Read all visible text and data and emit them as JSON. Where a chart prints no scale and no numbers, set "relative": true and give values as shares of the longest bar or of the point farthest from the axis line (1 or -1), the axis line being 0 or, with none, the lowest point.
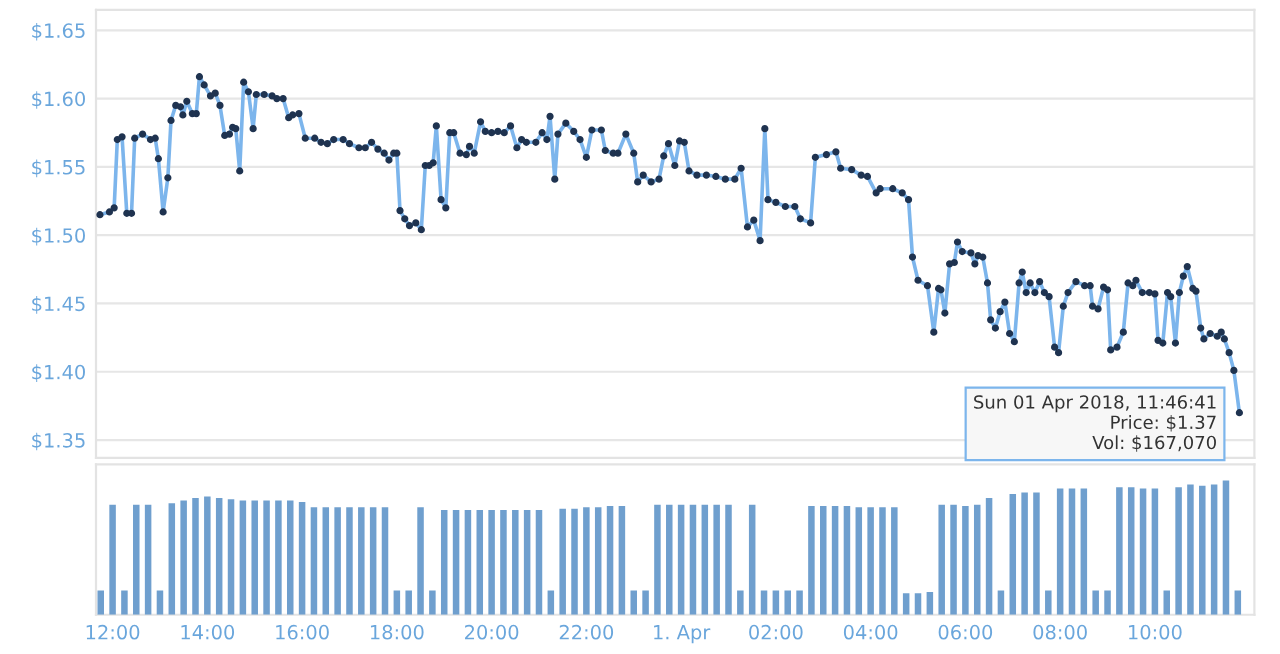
{
  "chart_data": [
    {
      "type": "line",
      "xlim": [
        "2018-03-31T11:39",
        "2018-04-01T12:06"
      ],
      "ylim": [
        1.337,
        1.665
      ],
      "yticks": [
        {
          "value": 1.35,
          "label": "$1.35"
        },
        {
          "value": 1.4,
          "label": "$1.40"
        },
        {
          "value": 1.45,
          "label": "$1.45"
        },
        {
          "value": 1.5,
          "label": "$1.50"
        },
        {
          "value": 1.55,
          "label": "$1.55"
        },
        {
          "value": 1.6,
          "label": "$1.60"
        },
        {
          "value": 1.65,
          "label": "$1.65"
        }
      ],
      "tick_labels": "y",
      "grid": "y",
      "marker": "circle",
      "line_style": "solid",
      "annotations": [
        {
          "text": "Sun 01 Apr 2018, 11:46:41\nPrice: $1.37\nVol: $167,070",
          "x": "2018-04-01T11:47",
          "y": 1.37
        }
      ],
      "series": [
        {
          "color": "#7cb5ec",
          "x": [
            "2018-03-31T11:44",
            "2018-03-31T11:56",
            "2018-03-31T12:02",
            "2018-03-31T12:06",
            "2018-03-31T12:12",
            "2018-03-31T12:18",
            "2018-03-31T12:24",
            "2018-03-31T12:28",
            "2018-03-31T12:38",
            "2018-03-31T12:48",
            "2018-03-31T12:54",
            "2018-03-31T12:58",
            "2018-03-31T13:04",
            "2018-03-31T13:10",
            "2018-03-31T13:14",
            "2018-03-31T13:20",
            "2018-03-31T13:26",
            "2018-03-31T13:29",
            "2018-03-31T13:34",
            "2018-03-31T13:41",
            "2018-03-31T13:46",
            "2018-03-31T13:50",
            "2018-03-31T13:56",
            "2018-03-31T14:04",
            "2018-03-31T14:10",
            "2018-03-31T14:16",
            "2018-03-31T14:22",
            "2018-03-31T14:28",
            "2018-03-31T14:32",
            "2018-03-31T14:36",
            "2018-03-31T14:41",
            "2018-03-31T14:46",
            "2018-03-31T14:52",
            "2018-03-31T14:58",
            "2018-03-31T15:02",
            "2018-03-31T15:12",
            "2018-03-31T15:22",
            "2018-03-31T15:28",
            "2018-03-31T15:36",
            "2018-03-31T15:43",
            "2018-03-31T15:48",
            "2018-03-31T15:56",
            "2018-03-31T16:04",
            "2018-03-31T16:16",
            "2018-03-31T16:24",
            "2018-03-31T16:32",
            "2018-03-31T16:40",
            "2018-03-31T16:52",
            "2018-03-31T17:00",
            "2018-03-31T17:12",
            "2018-03-31T17:20",
            "2018-03-31T17:28",
            "2018-03-31T17:36",
            "2018-03-31T17:44",
            "2018-03-31T17:50",
            "2018-03-31T17:56",
            "2018-03-31T18:00",
            "2018-03-31T18:04",
            "2018-03-31T18:10",
            "2018-03-31T18:16",
            "2018-03-31T18:24",
            "2018-03-31T18:31",
            "2018-03-31T18:36",
            "2018-03-31T18:41",
            "2018-03-31T18:46",
            "2018-03-31T18:50",
            "2018-03-31T18:56",
            "2018-03-31T19:02",
            "2018-03-31T19:07",
            "2018-03-31T19:12",
            "2018-03-31T19:20",
            "2018-03-31T19:28",
            "2018-03-31T19:32",
            "2018-03-31T19:38",
            "2018-03-31T19:46",
            "2018-03-31T19:52",
            "2018-03-31T20:00",
            "2018-03-31T20:08",
            "2018-03-31T20:16",
            "2018-03-31T20:24",
            "2018-03-31T20:32",
            "2018-03-31T20:38",
            "2018-03-31T20:44",
            "2018-03-31T20:56",
            "2018-03-31T21:04",
            "2018-03-31T21:10",
            "2018-03-31T21:14",
            "2018-03-31T21:20",
            "2018-03-31T21:24",
            "2018-03-31T21:34",
            "2018-03-31T21:44",
            "2018-03-31T21:52",
            "2018-03-31T22:00",
            "2018-03-31T22:07",
            "2018-03-31T22:19",
            "2018-03-31T22:24",
            "2018-03-31T22:34",
            "2018-03-31T22:40",
            "2018-03-31T22:50",
            "2018-03-31T23:00",
            "2018-03-31T23:05",
            "2018-03-31T23:12",
            "2018-03-31T23:22",
            "2018-03-31T23:32",
            "2018-03-31T23:38",
            "2018-03-31T23:44",
            "2018-03-31T23:52",
            "2018-03-31T23:58",
            "2018-04-01T00:04",
            "2018-04-01T00:10",
            "2018-04-01T00:20",
            "2018-04-01T00:32",
            "2018-04-01T00:44",
            "2018-04-01T00:56",
            "2018-04-01T01:08",
            "2018-04-01T01:16",
            "2018-04-01T01:24",
            "2018-04-01T01:32",
            "2018-04-01T01:40",
            "2018-04-01T01:46",
            "2018-04-01T01:50",
            "2018-04-01T02:00",
            "2018-04-01T02:12",
            "2018-04-01T02:24",
            "2018-04-01T02:31",
            "2018-04-01T02:44",
            "2018-04-01T02:50",
            "2018-04-01T03:04",
            "2018-04-01T03:16",
            "2018-04-01T03:22",
            "2018-04-01T03:36",
            "2018-04-01T03:48",
            "2018-04-01T03:56",
            "2018-04-01T04:07",
            "2018-04-01T04:12",
            "2018-04-01T04:28",
            "2018-04-01T04:40",
            "2018-04-01T04:48",
            "2018-04-01T04:53",
            "2018-04-01T05:00",
            "2018-04-01T05:12",
            "2018-04-01T05:20",
            "2018-04-01T05:26",
            "2018-04-01T05:29",
            "2018-04-01T05:34",
            "2018-04-01T05:40",
            "2018-04-01T05:46",
            "2018-04-01T05:50",
            "2018-04-01T05:56",
            "2018-04-01T06:07",
            "2018-04-01T06:12",
            "2018-04-01T06:16",
            "2018-04-01T06:22",
            "2018-04-01T06:28",
            "2018-04-01T06:32",
            "2018-04-01T06:38",
            "2018-04-01T06:44",
            "2018-04-01T06:50",
            "2018-04-01T06:56",
            "2018-04-01T07:02",
            "2018-04-01T07:08",
            "2018-04-01T07:12",
            "2018-04-01T07:17",
            "2018-04-01T07:22",
            "2018-04-01T07:28",
            "2018-04-01T07:34",
            "2018-04-01T07:40",
            "2018-04-01T07:46",
            "2018-04-01T07:53",
            "2018-04-01T07:58",
            "2018-04-01T08:04",
            "2018-04-01T08:10",
            "2018-04-01T08:20",
            "2018-04-01T08:31",
            "2018-04-01T08:38",
            "2018-04-01T08:41",
            "2018-04-01T08:48",
            "2018-04-01T08:55",
            "2018-04-01T09:00",
            "2018-04-01T09:04",
            "2018-04-01T09:12",
            "2018-04-01T09:20",
            "2018-04-01T09:26",
            "2018-04-01T09:32",
            "2018-04-01T09:36",
            "2018-04-01T09:44",
            "2018-04-01T09:53",
            "2018-04-01T10:00",
            "2018-04-01T10:04",
            "2018-04-01T10:10",
            "2018-04-01T10:16",
            "2018-04-01T10:20",
            "2018-04-01T10:26",
            "2018-04-01T10:31",
            "2018-04-01T10:36",
            "2018-04-01T10:41",
            "2018-04-01T10:48",
            "2018-04-01T10:52",
            "2018-04-01T10:58",
            "2018-04-01T11:02",
            "2018-04-01T11:10",
            "2018-04-01T11:19",
            "2018-04-01T11:24",
            "2018-04-01T11:28",
            "2018-04-01T11:34",
            "2018-04-01T11:40",
            "2018-04-01T11:47"
          ],
          "values": [
            1.515,
            1.517,
            1.52,
            1.57,
            1.572,
            1.516,
            1.516,
            1.571,
            1.574,
            1.57,
            1.571,
            1.556,
            1.517,
            1.542,
            1.584,
            1.595,
            1.594,
            1.588,
            1.598,
            1.589,
            1.589,
            1.616,
            1.61,
            1.602,
            1.604,
            1.595,
            1.573,
            1.574,
            1.579,
            1.578,
            1.547,
            1.612,
            1.605,
            1.578,
            1.603,
            1.603,
            1.602,
            1.6,
            1.6,
            1.586,
            1.588,
            1.589,
            1.571,
            1.571,
            1.568,
            1.567,
            1.57,
            1.57,
            1.567,
            1.564,
            1.564,
            1.568,
            1.563,
            1.56,
            1.555,
            1.56,
            1.56,
            1.518,
            1.512,
            1.507,
            1.509,
            1.504,
            1.551,
            1.551,
            1.553,
            1.58,
            1.526,
            1.52,
            1.575,
            1.575,
            1.56,
            1.559,
            1.565,
            1.56,
            1.583,
            1.576,
            1.575,
            1.576,
            1.575,
            1.58,
            1.564,
            1.57,
            1.568,
            1.568,
            1.575,
            1.57,
            1.587,
            1.541,
            1.574,
            1.582,
            1.576,
            1.57,
            1.557,
            1.577,
            1.577,
            1.562,
            1.56,
            1.56,
            1.574,
            1.56,
            1.539,
            1.544,
            1.539,
            1.541,
            1.558,
            1.567,
            1.551,
            1.569,
            1.568,
            1.547,
            1.544,
            1.544,
            1.543,
            1.541,
            1.541,
            1.549,
            1.506,
            1.511,
            1.496,
            1.578,
            1.526,
            1.524,
            1.521,
            1.521,
            1.512,
            1.509,
            1.557,
            1.559,
            1.561,
            1.549,
            1.548,
            1.544,
            1.543,
            1.531,
            1.534,
            1.534,
            1.531,
            1.526,
            1.484,
            1.467,
            1.463,
            1.429,
            1.461,
            1.46,
            1.443,
            1.479,
            1.48,
            1.495,
            1.488,
            1.487,
            1.479,
            1.485,
            1.484,
            1.465,
            1.438,
            1.432,
            1.444,
            1.451,
            1.428,
            1.422,
            1.465,
            1.473,
            1.458,
            1.465,
            1.458,
            1.466,
            1.458,
            1.455,
            1.418,
            1.414,
            1.448,
            1.458,
            1.466,
            1.463,
            1.463,
            1.448,
            1.446,
            1.462,
            1.46,
            1.416,
            1.418,
            1.429,
            1.465,
            1.463,
            1.467,
            1.458,
            1.458,
            1.457,
            1.423,
            1.421,
            1.458,
            1.455,
            1.421,
            1.458,
            1.47,
            1.477,
            1.461,
            1.459,
            1.432,
            1.424,
            1.428,
            1.426,
            1.429,
            1.424,
            1.414,
            1.401,
            1.37
          ]
        }
      ]
    },
    {
      "type": "bar",
      "relative": true,
      "xlim": [
        "2018-03-31T11:39",
        "2018-04-01T12:06"
      ],
      "tick_labels": "x",
      "xticks": [
        {
          "value": "2018-03-31T12:00",
          "label": "12:00"
        },
        {
          "value": "2018-03-31T14:00",
          "label": "14:00"
        },
        {
          "value": "2018-03-31T16:00",
          "label": "16:00"
        },
        {
          "value": "2018-03-31T18:00",
          "label": "18:00"
        },
        {
          "value": "2018-03-31T20:00",
          "label": "20:00"
        },
        {
          "value": "2018-03-31T22:00",
          "label": "22:00"
        },
        {
          "value": "2018-04-01T00:00",
          "label": "1. Apr"
        },
        {
          "value": "2018-04-01T02:00",
          "label": "02:00"
        },
        {
          "value": "2018-04-01T04:00",
          "label": "04:00"
        },
        {
          "value": "2018-04-01T06:00",
          "label": "06:00"
        },
        {
          "value": "2018-04-01T08:00",
          "label": "08:00"
        },
        {
          "value": "2018-04-01T10:00",
          "label": "10:00"
        }
      ],
      "series": [
        {
          "color": "#6f9fce",
          "x": [
            "2018-03-31T11:45",
            "2018-03-31T12:00",
            "2018-03-31T12:15",
            "2018-03-31T12:30",
            "2018-03-31T12:45",
            "2018-03-31T13:00",
            "2018-03-31T13:15",
            "2018-03-31T13:30",
            "2018-03-31T13:45",
            "2018-03-31T14:00",
            "2018-03-31T14:15",
            "2018-03-31T14:30",
            "2018-03-31T14:45",
            "2018-03-31T15:00",
            "2018-03-31T15:15",
            "2018-03-31T15:30",
            "2018-03-31T15:45",
            "2018-03-31T16:00",
            "2018-03-31T16:15",
            "2018-03-31T16:30",
            "2018-03-31T16:45",
            "2018-03-31T17:00",
            "2018-03-31T17:15",
            "2018-03-31T17:30",
            "2018-03-31T17:45",
            "2018-03-31T18:00",
            "2018-03-31T18:15",
            "2018-03-31T18:30",
            "2018-03-31T18:45",
            "2018-03-31T19:00",
            "2018-03-31T19:15",
            "2018-03-31T19:30",
            "2018-03-31T19:45",
            "2018-03-31T20:00",
            "2018-03-31T20:15",
            "2018-03-31T20:30",
            "2018-03-31T20:45",
            "2018-03-31T21:00",
            "2018-03-31T21:15",
            "2018-03-31T21:30",
            "2018-03-31T21:45",
            "2018-03-31T22:00",
            "2018-03-31T22:15",
            "2018-03-31T22:30",
            "2018-03-31T22:45",
            "2018-03-31T23:00",
            "2018-03-31T23:15",
            "2018-03-31T23:30",
            "2018-03-31T23:45",
            "2018-04-01T00:00",
            "2018-04-01T00:15",
            "2018-04-01T00:30",
            "2018-04-01T00:45",
            "2018-04-01T01:00",
            "2018-04-01T01:15",
            "2018-04-01T01:30",
            "2018-04-01T01:45",
            "2018-04-01T02:00",
            "2018-04-01T02:15",
            "2018-04-01T02:30",
            "2018-04-01T02:45",
            "2018-04-01T03:00",
            "2018-04-01T03:15",
            "2018-04-01T03:30",
            "2018-04-01T03:45",
            "2018-04-01T04:00",
            "2018-04-01T04:15",
            "2018-04-01T04:30",
            "2018-04-01T04:45",
            "2018-04-01T05:00",
            "2018-04-01T05:15",
            "2018-04-01T05:30",
            "2018-04-01T05:45",
            "2018-04-01T06:00",
            "2018-04-01T06:15",
            "2018-04-01T06:30",
            "2018-04-01T06:45",
            "2018-04-01T07:00",
            "2018-04-01T07:15",
            "2018-04-01T07:30",
            "2018-04-01T07:45",
            "2018-04-01T08:00",
            "2018-04-01T08:15",
            "2018-04-01T08:30",
            "2018-04-01T08:45",
            "2018-04-01T09:00",
            "2018-04-01T09:15",
            "2018-04-01T09:30",
            "2018-04-01T09:45",
            "2018-04-01T10:00",
            "2018-04-01T10:15",
            "2018-04-01T10:30",
            "2018-04-01T10:45",
            "2018-04-01T11:00",
            "2018-04-01T11:15",
            "2018-04-01T11:30",
            "2018-04-01T11:45"
          ],
          "values": [
            0.18,
            0.82,
            0.18,
            0.82,
            0.82,
            0.18,
            0.83,
            0.85,
            0.87,
            0.88,
            0.87,
            0.86,
            0.85,
            0.85,
            0.85,
            0.85,
            0.85,
            0.84,
            0.8,
            0.8,
            0.8,
            0.8,
            0.8,
            0.8,
            0.8,
            0.18,
            0.18,
            0.8,
            0.18,
            0.78,
            0.78,
            0.78,
            0.78,
            0.78,
            0.78,
            0.78,
            0.78,
            0.78,
            0.18,
            0.79,
            0.79,
            0.8,
            0.8,
            0.81,
            0.81,
            0.18,
            0.18,
            0.82,
            0.82,
            0.82,
            0.82,
            0.82,
            0.82,
            0.82,
            0.18,
            0.82,
            0.18,
            0.18,
            0.18,
            0.18,
            0.81,
            0.81,
            0.81,
            0.81,
            0.8,
            0.8,
            0.8,
            0.8,
            0.16,
            0.16,
            0.17,
            0.82,
            0.82,
            0.81,
            0.82,
            0.87,
            0.18,
            0.9,
            0.91,
            0.91,
            0.18,
            0.94,
            0.94,
            0.94,
            0.18,
            0.18,
            0.95,
            0.95,
            0.94,
            0.94,
            0.18,
            0.95,
            0.97,
            0.96,
            0.97,
            1.0,
            0.18
          ]
        }
      ]
    }
  ]
}
